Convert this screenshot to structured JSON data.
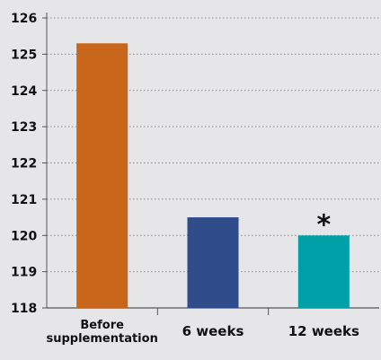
{
  "chart_data": {
    "type": "bar",
    "title": "",
    "xlabel": "",
    "ylabel": "",
    "ylim": [
      118,
      126
    ],
    "yticks": [
      118,
      119,
      120,
      121,
      122,
      123,
      124,
      125,
      126
    ],
    "ytick_labels": [
      "118",
      "119",
      "120",
      "121",
      "122",
      "123",
      "124",
      "125",
      "126"
    ],
    "grid": "horizontal dotted",
    "categories": [
      [
        "Before",
        "supplementation"
      ],
      [
        "6 weeks"
      ],
      [
        "12 weeks"
      ]
    ],
    "values": [
      125.3,
      120.5,
      120.0
    ],
    "colors": [
      "#c8661b",
      "#2e4d8a",
      "#00a0a8"
    ],
    "annotations": [
      {
        "category_index": 2,
        "text": "*"
      }
    ]
  }
}
